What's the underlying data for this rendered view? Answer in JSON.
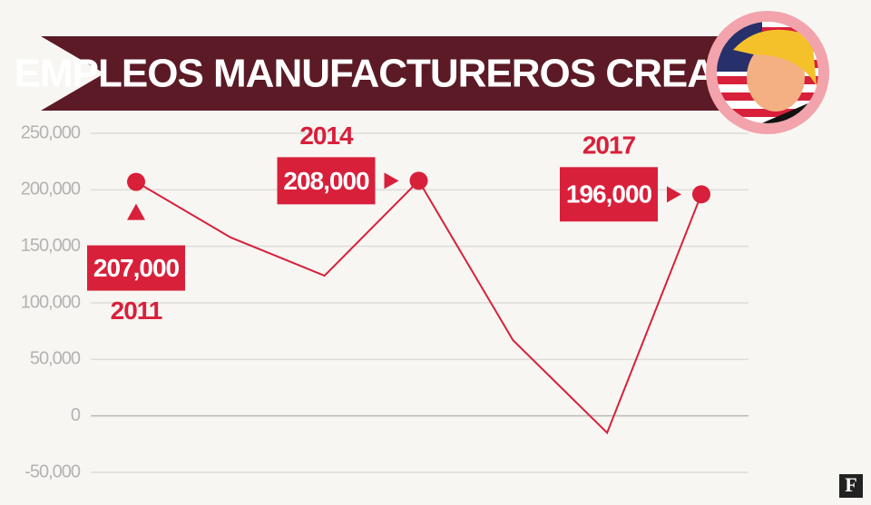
{
  "chart_data": {
    "type": "line",
    "title": "EMPLEOS MANUFACTUREROS CREADOS",
    "categories": [
      "2011",
      null,
      null,
      "2014",
      null,
      null,
      "2017"
    ],
    "values": [
      207000,
      158000,
      124000,
      208000,
      67000,
      -15000,
      196000
    ],
    "value_labels": [
      "207,000",
      null,
      null,
      "208,000",
      null,
      null,
      "196,000"
    ],
    "color": "#d8203b",
    "ylim": [
      -50000,
      250000
    ],
    "yticks": [
      {
        "value": -50000,
        "label": "-50,000"
      },
      0,
      {
        "value": 50000,
        "label": "50,000"
      },
      {
        "value": 100000,
        "label": "100,000"
      },
      {
        "value": 150000,
        "label": "150,000"
      },
      {
        "value": 200000,
        "label": "200,000"
      },
      {
        "value": 250000,
        "label": "250,000"
      }
    ],
    "grid": true
  },
  "logo": "F"
}
